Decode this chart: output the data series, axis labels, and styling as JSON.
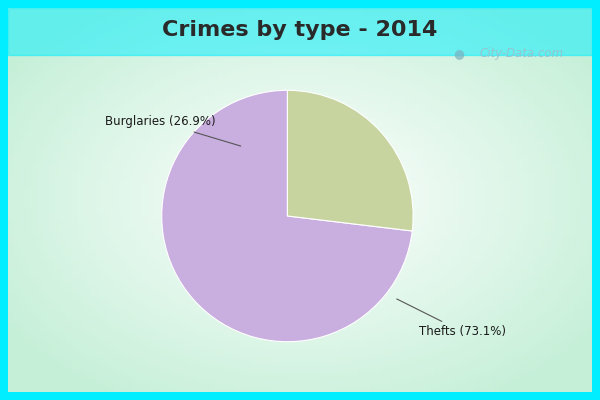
{
  "title": "Crimes by type - 2014",
  "slices": [
    73.1,
    26.9
  ],
  "labels": [
    "Thefts (73.1%)",
    "Burglaries (26.9%)"
  ],
  "colors": [
    "#c9aee0",
    "#c8d4a0"
  ],
  "border_color": "#00eeff",
  "bg_color": "#e0f5ea",
  "startangle": 90,
  "title_fontsize": 16,
  "title_color": "#2a2a2a",
  "watermark": "City-Data.com",
  "border_width": 8
}
